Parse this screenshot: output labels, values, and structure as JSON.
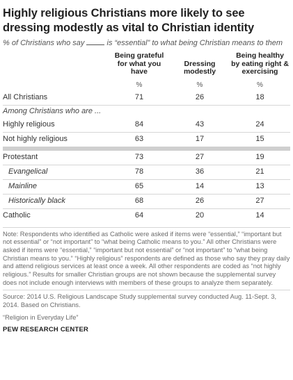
{
  "title": "Highly religious Christians more likely to see dressing modestly as vital to Christian identity",
  "subtitle_before": "% of Christians who say",
  "subtitle_after": "is “essential” to what being Christian means to them",
  "columns": [
    "Being grateful for what you have",
    "Dressing modestly",
    "Being healthy by eating right & exercising"
  ],
  "unit_row": [
    "%",
    "%",
    "%"
  ],
  "rows": [
    {
      "label": "All Christians",
      "values": [
        "71",
        "26",
        "18"
      ]
    },
    {
      "label": "Among Christians who are ...",
      "values": []
    },
    {
      "label": "Highly religious",
      "values": [
        "84",
        "43",
        "24"
      ]
    },
    {
      "label": "Not highly religious",
      "values": [
        "63",
        "17",
        "15"
      ]
    },
    {
      "label": "Protestant",
      "values": [
        "73",
        "27",
        "19"
      ]
    },
    {
      "label": "Evangelical",
      "values": [
        "78",
        "36",
        "21"
      ]
    },
    {
      "label": "Mainline",
      "values": [
        "65",
        "14",
        "13"
      ]
    },
    {
      "label": "Historically black",
      "values": [
        "68",
        "26",
        "27"
      ]
    },
    {
      "label": "Catholic",
      "values": [
        "64",
        "20",
        "14"
      ]
    }
  ],
  "note": "Note: Respondents who identified as Catholic were asked if items were “essential,” “important but not essential” or “not important” to “what being Catholic means to you.” All other Christians were asked if items were “essential,” “important but not essential” or “not important” to “what being Christian means to you.” “Highly religious” respondents are defined as those who say they pray daily and attend religious services at least once a week. All other respondents are coded as “not highly religious.” Results for smaller Christian groups are not shown because the supplemental survey does not include enough interviews with members of these groups to analyze them separately.",
  "source": "Source: 2014 U.S. Religious Landscape Study supplemental survey conducted Aug. 11-Sept. 3, 2014. Based on Christians.",
  "report": "“Religion in Everyday Life”",
  "brand": "PEW RESEARCH CENTER"
}
